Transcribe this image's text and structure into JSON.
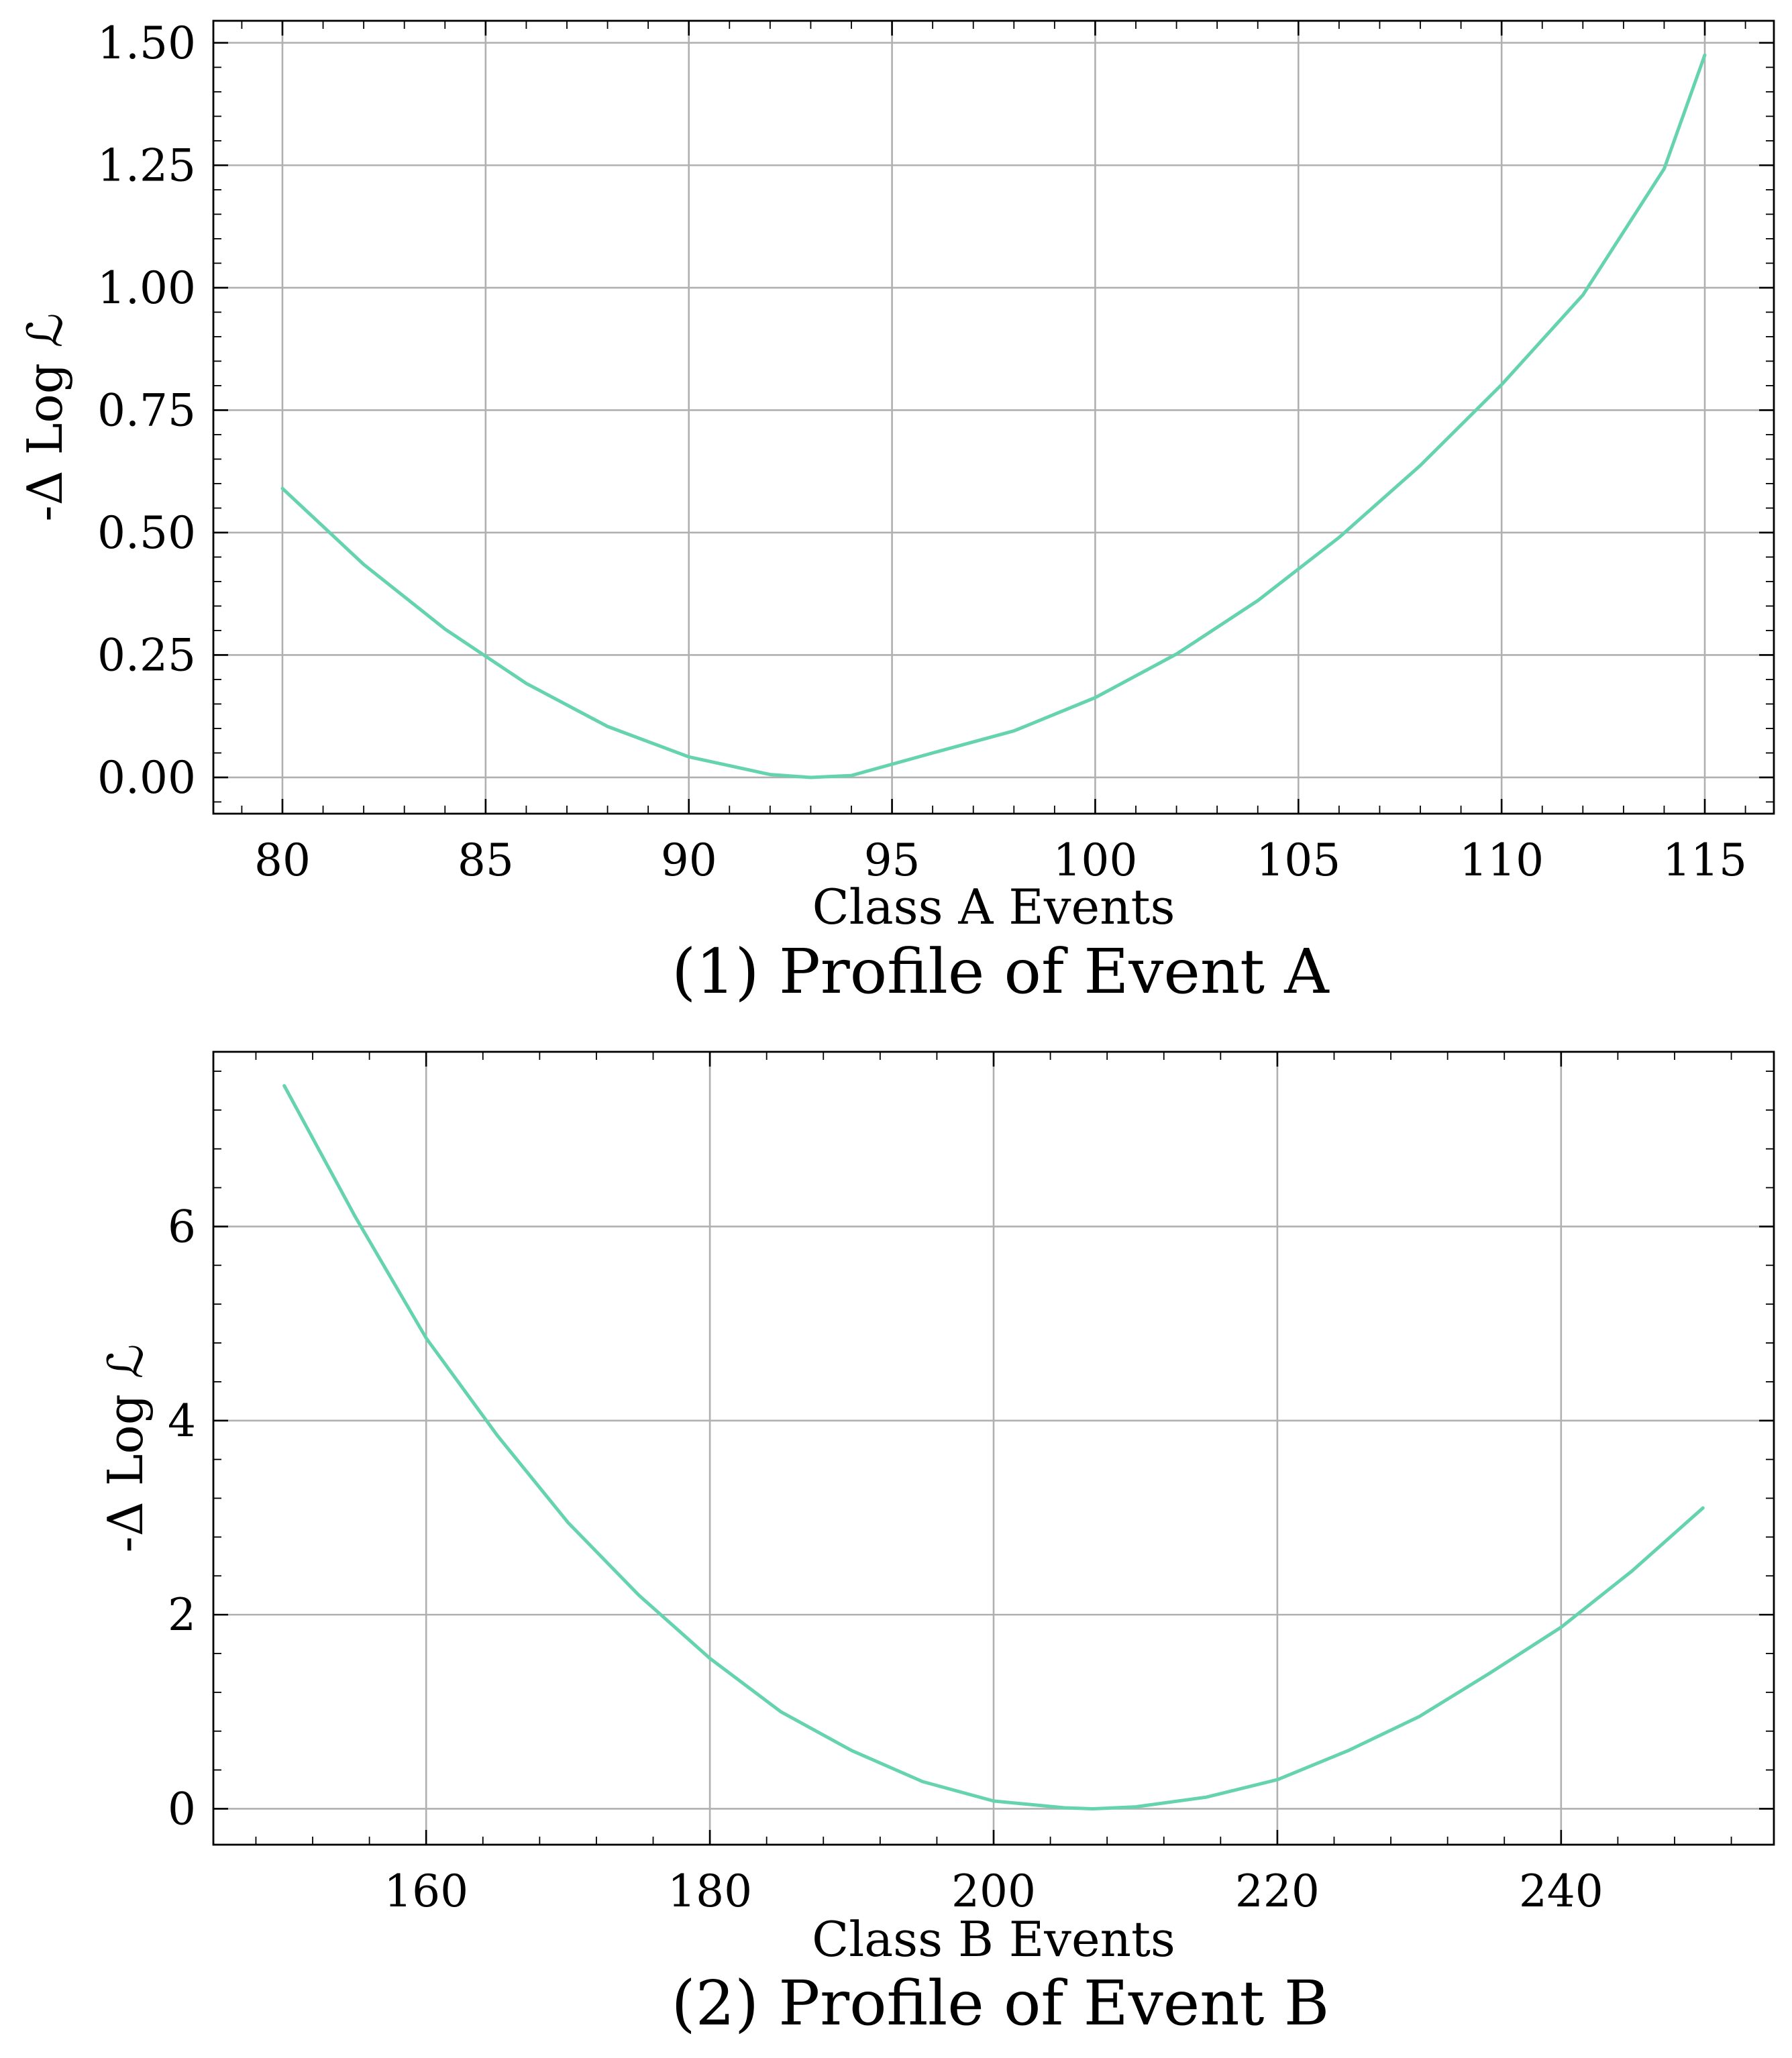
{
  "chart_data": [
    {
      "type": "line",
      "caption": "(1) Profile of Event A",
      "title": "",
      "xlabel": "Class A Events",
      "ylabel": "-Δ Log ℒ",
      "xlim": [
        78.3,
        116.7
      ],
      "ylim": [
        -0.074,
        1.545
      ],
      "xticks": [
        80,
        85,
        90,
        95,
        100,
        105,
        110,
        115
      ],
      "xtick_labels": [
        "80",
        "85",
        "90",
        "95",
        "100",
        "105",
        "110",
        "115"
      ],
      "xminor_step": 1,
      "yticks": [
        0,
        0.25,
        0.5,
        0.75,
        1.0,
        1.25,
        1.5
      ],
      "ytick_labels": [
        "0.00",
        "0.25",
        "0.50",
        "0.75",
        "1.00",
        "1.25",
        "1.50"
      ],
      "yminor_step": 0.05,
      "grid": true,
      "legend": "none",
      "color": "#66d3b0",
      "series": [
        {
          "x": [
            80,
            82,
            84,
            86,
            88,
            90,
            92,
            93,
            94,
            96,
            98,
            100,
            102,
            104,
            106,
            108,
            110,
            112,
            114,
            115
          ],
          "y": [
            0.59,
            0.435,
            0.303,
            0.192,
            0.104,
            0.042,
            0.006,
            0.0,
            0.004,
            0.05,
            0.095,
            0.163,
            0.252,
            0.361,
            0.49,
            0.637,
            0.802,
            0.985,
            1.243,
            1.475
          ]
        }
      ]
    },
    {
      "type": "line",
      "caption": "(2) Profile of Event B",
      "title": "",
      "xlabel": "Class B Events",
      "ylabel": "-Δ Log ℒ",
      "xlim": [
        145,
        255
      ],
      "ylim": [
        -0.37,
        7.8
      ],
      "xticks": [
        160,
        180,
        200,
        220,
        240
      ],
      "xtick_labels": [
        "160",
        "180",
        "200",
        "220",
        "240"
      ],
      "xminor_step": 4,
      "yticks": [
        0,
        2,
        4,
        6
      ],
      "ytick_labels": [
        "0",
        "2",
        "4",
        "6"
      ],
      "yminor_step": 0.4,
      "grid": true,
      "legend": "none",
      "color": "#66d3b0",
      "series": [
        {
          "x": [
            150,
            155,
            160,
            165,
            170,
            175,
            180,
            185,
            190,
            195,
            200,
            205,
            207,
            210,
            215,
            220,
            225,
            230,
            235,
            240,
            245,
            250
          ],
          "y": [
            7.45,
            6.1,
            4.85,
            3.85,
            2.95,
            2.2,
            1.55,
            1.0,
            0.6,
            0.28,
            0.08,
            0.01,
            0.0,
            0.02,
            0.12,
            0.3,
            0.6,
            0.95,
            1.4,
            1.87,
            2.45,
            3.1
          ]
        }
      ]
    }
  ]
}
